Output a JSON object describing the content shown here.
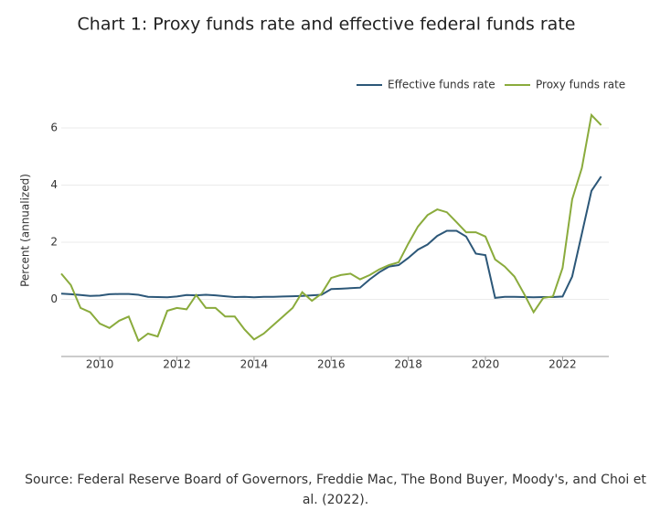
{
  "chart_data": {
    "type": "line",
    "title": "Chart 1: Proxy funds rate and effective federal funds rate",
    "ylabel": "Percent (annualized)",
    "source": "Source: Federal Reserve Board of Governors, Freddie Mac, The Bond Buyer, Moody's, and Choi et al. (2022).",
    "x": [
      2009,
      2009.25,
      2009.5,
      2009.75,
      2010,
      2010.25,
      2010.5,
      2010.75,
      2011,
      2011.25,
      2011.5,
      2011.75,
      2012,
      2012.25,
      2012.5,
      2012.75,
      2013,
      2013.25,
      2013.5,
      2013.75,
      2014,
      2014.25,
      2014.5,
      2014.75,
      2015,
      2015.25,
      2015.5,
      2015.75,
      2016,
      2016.25,
      2016.5,
      2016.75,
      2017,
      2017.25,
      2017.5,
      2017.75,
      2018,
      2018.25,
      2018.5,
      2018.75,
      2019,
      2019.25,
      2019.5,
      2019.75,
      2020,
      2020.25,
      2020.5,
      2020.75,
      2021,
      2021.25,
      2021.5,
      2021.75,
      2022,
      2022.25,
      2022.5,
      2022.75,
      2023
    ],
    "series": [
      {
        "name": "Effective funds rate",
        "color": "#2c5778",
        "values": [
          0.2,
          0.18,
          0.15,
          0.12,
          0.13,
          0.18,
          0.19,
          0.19,
          0.16,
          0.09,
          0.08,
          0.07,
          0.1,
          0.15,
          0.14,
          0.16,
          0.14,
          0.11,
          0.08,
          0.09,
          0.07,
          0.09,
          0.09,
          0.1,
          0.11,
          0.12,
          0.14,
          0.16,
          0.36,
          0.37,
          0.39,
          0.41,
          0.7,
          0.95,
          1.15,
          1.2,
          1.45,
          1.74,
          1.92,
          2.22,
          2.4,
          2.4,
          2.2,
          1.6,
          1.55,
          0.05,
          0.09,
          0.09,
          0.08,
          0.07,
          0.08,
          0.08,
          0.1,
          0.8,
          2.3,
          3.8,
          4.3
        ]
      },
      {
        "name": "Proxy funds rate",
        "color": "#8aab3c",
        "values": [
          0.9,
          0.5,
          -0.3,
          -0.45,
          -0.85,
          -1.0,
          -0.75,
          -0.6,
          -1.45,
          -1.2,
          -1.3,
          -0.4,
          -0.3,
          -0.35,
          0.15,
          -0.3,
          -0.3,
          -0.6,
          -0.6,
          -1.05,
          -1.4,
          -1.2,
          -0.9,
          -0.6,
          -0.3,
          0.25,
          -0.05,
          0.2,
          0.75,
          0.85,
          0.9,
          0.7,
          0.85,
          1.05,
          1.2,
          1.3,
          1.95,
          2.55,
          2.95,
          3.15,
          3.05,
          2.7,
          2.35,
          2.35,
          2.2,
          1.4,
          1.15,
          0.8,
          0.2,
          -0.45,
          0.05,
          0.1,
          1.1,
          3.5,
          4.6,
          6.45,
          6.1
        ]
      }
    ],
    "xlim": [
      2009,
      2023.2
    ],
    "ylim": [
      -2,
      6.8
    ],
    "xticks": [
      2010,
      2012,
      2014,
      2016,
      2018,
      2020,
      2022
    ],
    "yticks": [
      0,
      2,
      4,
      6
    ],
    "grid": true,
    "legend": "top-right"
  }
}
